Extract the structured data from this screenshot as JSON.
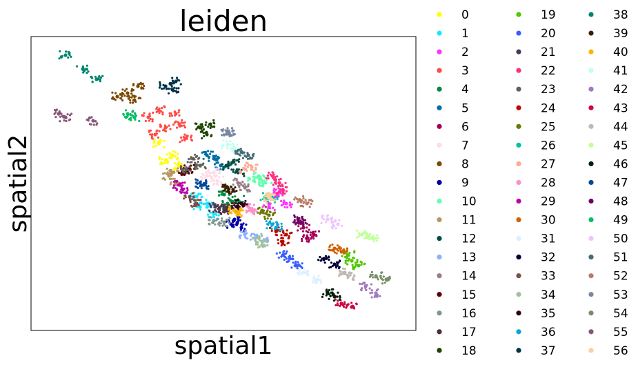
{
  "chart_data": {
    "type": "scatter",
    "title": "leiden",
    "xlabel": "spatial1",
    "ylabel": "spatial2",
    "grid": false,
    "ticks": false,
    "legend_placement": "right, outside, 3 columns",
    "series": [
      {
        "name": "0",
        "color": "#ffff00",
        "points": [
          [
            230,
            208
          ],
          [
            260,
            240
          ],
          [
            250,
            225
          ],
          [
            240,
            232
          ]
        ]
      },
      {
        "name": "1",
        "color": "#1ce6ff",
        "points": [
          [
            290,
            300
          ],
          [
            310,
            310
          ],
          [
            300,
            295
          ],
          [
            285,
            285
          ]
        ]
      },
      {
        "name": "2",
        "color": "#ff34ff",
        "points": [
          [
            400,
            285
          ],
          [
            415,
            295
          ],
          [
            405,
            278
          ],
          [
            390,
            300
          ]
        ]
      },
      {
        "name": "3",
        "color": "#ff4a46",
        "points": [
          [
            215,
            170
          ],
          [
            240,
            185
          ],
          [
            255,
            165
          ],
          [
            270,
            200
          ],
          [
            225,
            195
          ],
          [
            260,
            180
          ],
          [
            230,
            160
          ]
        ]
      },
      {
        "name": "4",
        "color": "#008941",
        "points": [
          [
            325,
            282
          ],
          [
            345,
            290
          ],
          [
            330,
            295
          ]
        ]
      },
      {
        "name": "5",
        "color": "#006fa6",
        "points": [
          [
            300,
            225
          ],
          [
            320,
            240
          ],
          [
            310,
            230
          ]
        ]
      },
      {
        "name": "6",
        "color": "#a30059",
        "points": [
          [
            440,
            330
          ],
          [
            455,
            340
          ],
          [
            445,
            345
          ]
        ]
      },
      {
        "name": "7",
        "color": "#ffdbe5",
        "points": [
          [
            300,
            255
          ],
          [
            315,
            262
          ],
          [
            310,
            250
          ]
        ]
      },
      {
        "name": "8",
        "color": "#7a4900",
        "points": [
          [
            170,
            140
          ],
          [
            185,
            135
          ],
          [
            200,
            125
          ],
          [
            195,
            145
          ]
        ]
      },
      {
        "name": "9",
        "color": "#0000a6",
        "points": [
          [
            335,
            325
          ],
          [
            350,
            330
          ],
          [
            340,
            318
          ]
        ]
      },
      {
        "name": "10",
        "color": "#63ffac",
        "points": [
          [
            375,
            255
          ],
          [
            385,
            265
          ],
          [
            368,
            262
          ]
        ]
      },
      {
        "name": "11",
        "color": "#b79762",
        "points": [
          [
            245,
            255
          ],
          [
            255,
            265
          ],
          [
            250,
            250
          ]
        ]
      },
      {
        "name": "12",
        "color": "#004d43",
        "points": [
          [
            330,
            240
          ],
          [
            345,
            250
          ],
          [
            338,
            235
          ]
        ]
      },
      {
        "name": "13",
        "color": "#8fb0ff",
        "points": [
          [
            355,
            340
          ],
          [
            370,
            345
          ],
          [
            380,
            350
          ]
        ]
      },
      {
        "name": "14",
        "color": "#997d87",
        "points": [
          [
            345,
            265
          ],
          [
            355,
            272
          ]
        ]
      },
      {
        "name": "15",
        "color": "#5a0007",
        "points": [
          [
            268,
            250
          ],
          [
            275,
            245
          ]
        ]
      },
      {
        "name": "16",
        "color": "#809693",
        "points": [
          [
            310,
            320
          ],
          [
            325,
            322
          ]
        ]
      },
      {
        "name": "17",
        "color": "#4f2e33",
        "points": [
          [
            325,
            305
          ],
          [
            330,
            300
          ]
        ]
      },
      {
        "name": "18",
        "color": "#1b4400",
        "points": [
          [
            290,
            185
          ],
          [
            300,
            195
          ],
          [
            305,
            180
          ]
        ]
      },
      {
        "name": "19",
        "color": "#4fc601",
        "points": [
          [
            510,
            378
          ],
          [
            520,
            385
          ],
          [
            505,
            370
          ]
        ]
      },
      {
        "name": "20",
        "color": "#3b5dff",
        "points": [
          [
            410,
            370
          ],
          [
            420,
            375
          ],
          [
            430,
            385
          ]
        ]
      },
      {
        "name": "21",
        "color": "#4a3b53",
        "points": [
          [
            312,
            300
          ],
          [
            318,
            302
          ]
        ]
      },
      {
        "name": "22",
        "color": "#ff2f80",
        "points": [
          [
            395,
            255
          ],
          [
            405,
            265
          ],
          [
            410,
            275
          ]
        ]
      },
      {
        "name": "23",
        "color": "#61615a",
        "points": [
          [
            280,
            230
          ],
          [
            290,
            240
          ],
          [
            270,
            245
          ]
        ]
      },
      {
        "name": "24",
        "color": "#ba0900",
        "points": [
          [
            400,
            335
          ],
          [
            415,
            340
          ],
          [
            410,
            350
          ]
        ]
      },
      {
        "name": "25",
        "color": "#6b7900",
        "points": [
          [
            380,
            305
          ],
          [
            390,
            312
          ]
        ]
      },
      {
        "name": "26",
        "color": "#00c2a0",
        "points": [
          [
            385,
            285
          ],
          [
            395,
            288
          ]
        ]
      },
      {
        "name": "27",
        "color": "#ffaa92",
        "points": [
          [
            355,
            245
          ],
          [
            365,
            242
          ]
        ]
      },
      {
        "name": "28",
        "color": "#ff90c9",
        "points": [
          [
            360,
            300
          ],
          [
            365,
            305
          ]
        ]
      },
      {
        "name": "29",
        "color": "#b903aa",
        "points": [
          [
            260,
            268
          ],
          [
            265,
            275
          ]
        ]
      },
      {
        "name": "30",
        "color": "#d16100",
        "points": [
          [
            485,
            360
          ],
          [
            495,
            365
          ]
        ]
      },
      {
        "name": "31",
        "color": "#ddefff",
        "points": [
          [
            440,
            395
          ],
          [
            460,
            405
          ]
        ]
      },
      {
        "name": "32",
        "color": "#000035",
        "points": [
          [
            470,
            375
          ],
          [
            485,
            383
          ]
        ]
      },
      {
        "name": "33",
        "color": "#7b4f4b",
        "points": [
          [
            275,
            285
          ],
          [
            285,
            295
          ]
        ]
      },
      {
        "name": "34",
        "color": "#a1c299",
        "points": [
          [
            375,
            345
          ],
          [
            380,
            355
          ]
        ]
      },
      {
        "name": "35",
        "color": "#300018",
        "points": [
          [
            345,
            300
          ],
          [
            350,
            295
          ]
        ]
      },
      {
        "name": "36",
        "color": "#0aa6d8",
        "points": [
          [
            395,
            325
          ],
          [
            400,
            330
          ]
        ]
      },
      {
        "name": "37",
        "color": "#013349",
        "points": [
          [
            240,
            125
          ],
          [
            250,
            130
          ],
          [
            255,
            118
          ]
        ]
      },
      {
        "name": "38",
        "color": "#00846f",
        "points": [
          [
            95,
            80
          ],
          [
            120,
            100
          ],
          [
            140,
            115
          ]
        ]
      },
      {
        "name": "39",
        "color": "#372101",
        "points": [
          [
            330,
            272
          ],
          [
            338,
            275
          ]
        ]
      },
      {
        "name": "40",
        "color": "#ffb500",
        "points": [
          [
            340,
            305
          ],
          [
            345,
            308
          ]
        ]
      },
      {
        "name": "41",
        "color": "#c2ffed",
        "points": [
          [
            330,
            210
          ],
          [
            340,
            215
          ]
        ]
      },
      {
        "name": "42",
        "color": "#a079bf",
        "points": [
          [
            530,
            415
          ],
          [
            545,
            425
          ]
        ]
      },
      {
        "name": "43",
        "color": "#cc0744",
        "points": [
          [
            495,
            440
          ],
          [
            510,
            445
          ]
        ]
      },
      {
        "name": "44",
        "color": "#c0b9b2",
        "points": [
          [
            500,
            395
          ],
          [
            505,
            400
          ]
        ]
      },
      {
        "name": "45",
        "color": "#c2ff99",
        "points": [
          [
            525,
            340
          ],
          [
            540,
            345
          ]
        ]
      },
      {
        "name": "46",
        "color": "#001e09",
        "points": [
          [
            475,
            425
          ],
          [
            485,
            430
          ]
        ]
      },
      {
        "name": "47",
        "color": "#00489c",
        "points": [
          [
            290,
            265
          ],
          [
            295,
            268
          ]
        ]
      },
      {
        "name": "48",
        "color": "#6f0062",
        "points": [
          [
            432,
            318
          ],
          [
            436,
            322
          ]
        ]
      },
      {
        "name": "49",
        "color": "#0cbd66",
        "points": [
          [
            185,
            165
          ],
          [
            195,
            170
          ]
        ]
      },
      {
        "name": "50",
        "color": "#eec3ff",
        "points": [
          [
            475,
            318
          ],
          [
            490,
            325
          ]
        ]
      },
      {
        "name": "51",
        "color": "#456d75",
        "points": [
          [
            350,
            220
          ],
          [
            360,
            225
          ]
        ]
      },
      {
        "name": "52",
        "color": "#b77b68",
        "points": [
          [
            435,
            290
          ],
          [
            445,
            295
          ]
        ]
      },
      {
        "name": "53",
        "color": "#7a87a1",
        "points": [
          [
            330,
            190
          ],
          [
            332,
            194
          ]
        ]
      },
      {
        "name": "54",
        "color": "#788d66",
        "points": [
          [
            545,
            400
          ],
          [
            560,
            405
          ]
        ]
      },
      {
        "name": "55",
        "color": "#885578",
        "points": [
          [
            85,
            165
          ],
          [
            95,
            170
          ],
          [
            135,
            175
          ]
        ]
      },
      {
        "name": "56",
        "color": "#fad09f",
        "points": [
          [
            390,
            285
          ],
          [
            392,
            288
          ]
        ]
      }
    ]
  }
}
